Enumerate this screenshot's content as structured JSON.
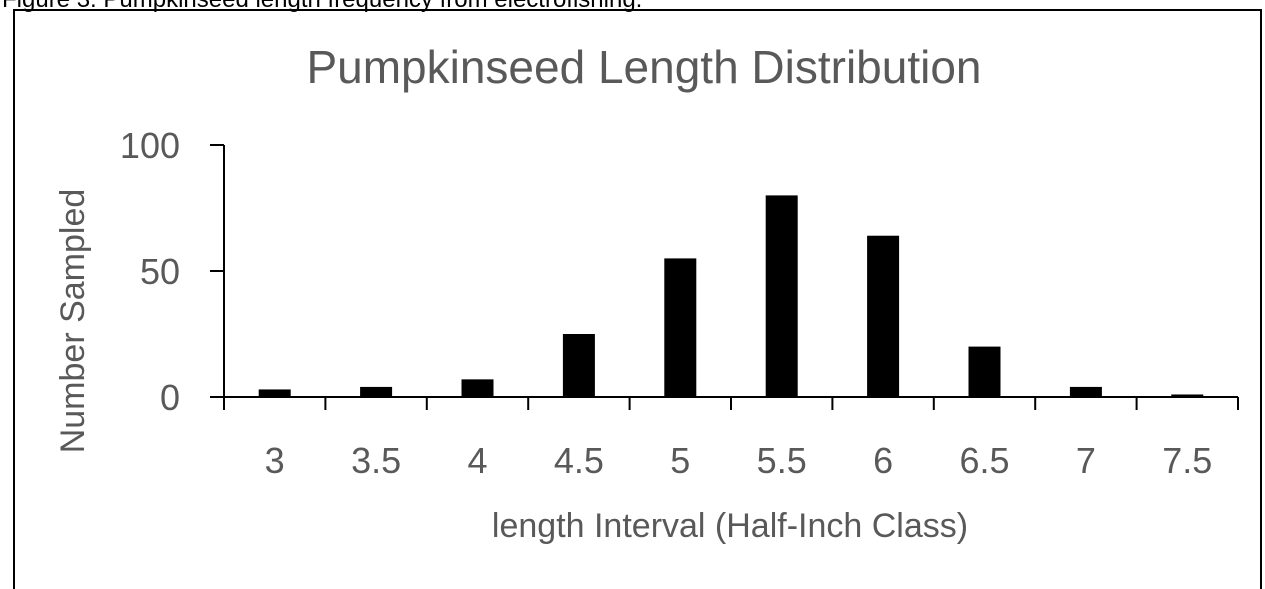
{
  "document": {
    "caption": "Figure 3. Pumpkinseed length frequency from electrofishing."
  },
  "chart_data": {
    "type": "bar",
    "title": "Pumpkinseed Length Distribution",
    "xlabel": "length Interval (Half-Inch Class)",
    "ylabel": "Number Sampled",
    "categories": [
      "3",
      "3.5",
      "4",
      "4.5",
      "5",
      "5.5",
      "6",
      "6.5",
      "7",
      "7.5"
    ],
    "values": [
      3,
      4,
      7,
      25,
      55,
      80,
      64,
      20,
      4,
      1
    ],
    "ylim": [
      0,
      100
    ],
    "yticks": [
      0,
      50,
      100
    ],
    "grid": false,
    "legend": "none",
    "bar_color": "#000000",
    "axis_color": "#000000",
    "text_color": "#595959"
  }
}
